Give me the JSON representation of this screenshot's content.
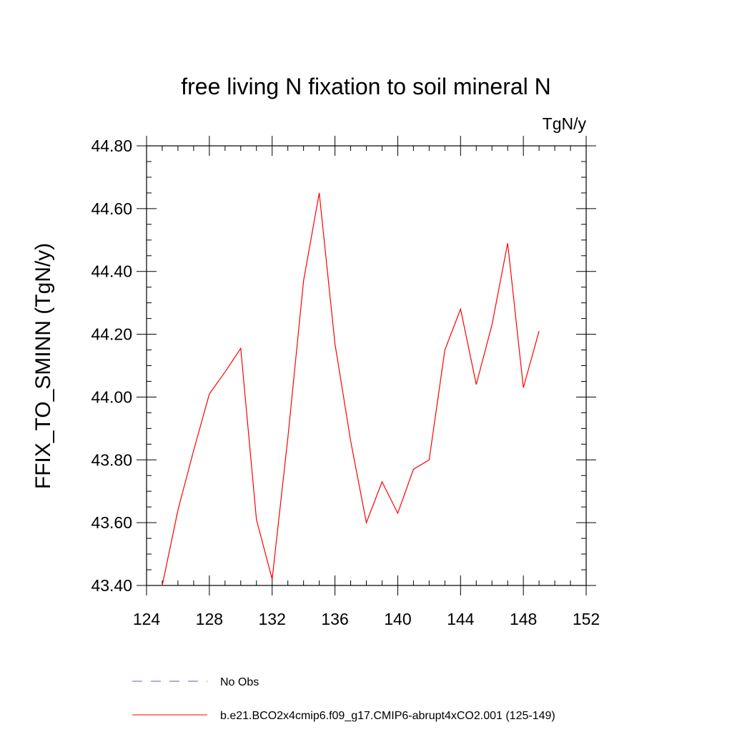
{
  "chart_data": {
    "type": "line",
    "title": "free living N fixation to soil mineral N",
    "units": "TgN/y",
    "ylabel": "FFIX_TO_SMINN  (TgN/y)",
    "xlabel": "",
    "xlim": [
      124,
      152
    ],
    "ylim": [
      43.4,
      44.8
    ],
    "xticks": [
      124,
      128,
      132,
      136,
      140,
      144,
      148,
      152
    ],
    "xtick_labels": [
      "124",
      "128",
      "132",
      "136",
      "140",
      "144",
      "148",
      "152"
    ],
    "yticks": [
      43.4,
      43.6,
      43.8,
      44.0,
      44.2,
      44.4,
      44.6,
      44.8
    ],
    "ytick_labels": [
      "43.40",
      "43.60",
      "43.80",
      "44.00",
      "44.20",
      "44.40",
      "44.60",
      "44.80"
    ],
    "series": [
      {
        "name": "b.e21.BCO2x4cmip6.f09_g17.CMIP6-abrupt4xCO2.001 (125-149)",
        "color": "#ff0000",
        "style": "solid",
        "x": [
          125,
          126,
          127,
          128,
          129,
          130,
          131,
          132,
          133,
          134,
          135,
          136,
          137,
          138,
          139,
          140,
          141,
          142,
          143,
          144,
          145,
          146,
          147,
          148,
          149
        ],
        "values": [
          43.4,
          43.64,
          43.83,
          44.01,
          44.08,
          44.155,
          43.61,
          43.42,
          43.87,
          44.37,
          44.65,
          44.17,
          43.86,
          43.6,
          43.73,
          43.63,
          43.77,
          43.8,
          44.15,
          44.28,
          44.04,
          44.23,
          44.49,
          44.03,
          44.21
        ]
      }
    ],
    "legend": [
      {
        "label": "No Obs",
        "color": "#6a5acd",
        "style": "dashed"
      },
      {
        "label": "b.e21.BCO2x4cmip6.f09_g17.CMIP6-abrupt4xCO2.001 (125-149)",
        "color": "#ff0000",
        "style": "solid"
      }
    ],
    "legend_position": "bottom"
  }
}
